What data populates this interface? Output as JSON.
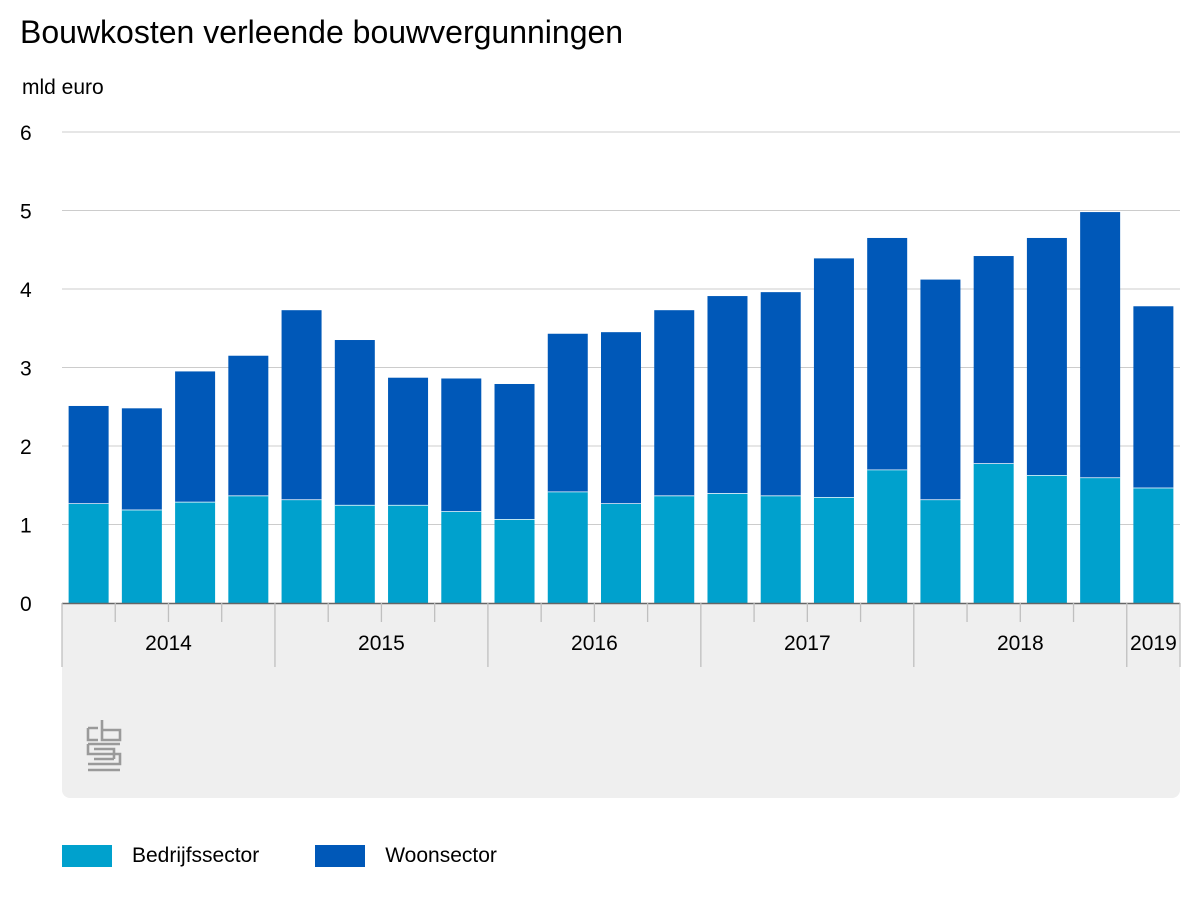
{
  "title": "Bouwkosten verleende bouwvergunningen",
  "unit_label": "mld euro",
  "colors": {
    "bedrijf": "#00a1cd",
    "woon": "#0058b8",
    "grid": "#cccccc",
    "panel": "#efefef",
    "axis": "#666666"
  },
  "legend": [
    {
      "label": "Bedrijfssector",
      "color": "#00a1cd"
    },
    {
      "label": "Woonsector",
      "color": "#0058b8"
    }
  ],
  "chart_data": {
    "type": "bar",
    "stacked": true,
    "ylim": [
      0,
      6
    ],
    "yticks": [
      "0",
      "1",
      "2",
      "3",
      "4",
      "5",
      "6"
    ],
    "grid": true,
    "legend_position": "bottom-left",
    "quarters_per_year": {
      "2014": 4,
      "2015": 4,
      "2016": 4,
      "2017": 4,
      "2018": 4,
      "2019": 1
    },
    "year_labels": [
      "2014",
      "2015",
      "2016",
      "2017",
      "2018",
      "2019"
    ],
    "series": [
      {
        "name": "Bedrijfssector",
        "values": [
          1.27,
          1.19,
          1.29,
          1.37,
          1.32,
          1.25,
          1.25,
          1.17,
          1.07,
          1.42,
          1.27,
          1.37,
          1.4,
          1.37,
          1.35,
          1.7,
          1.32,
          1.78,
          1.63,
          1.6,
          1.47
        ]
      },
      {
        "name": "Woonsector",
        "values": [
          1.24,
          1.29,
          1.66,
          1.78,
          2.41,
          2.1,
          1.62,
          1.69,
          1.72,
          2.01,
          2.18,
          2.36,
          2.51,
          2.59,
          3.04,
          2.95,
          2.8,
          2.64,
          3.02,
          3.38,
          2.31
        ]
      }
    ]
  }
}
